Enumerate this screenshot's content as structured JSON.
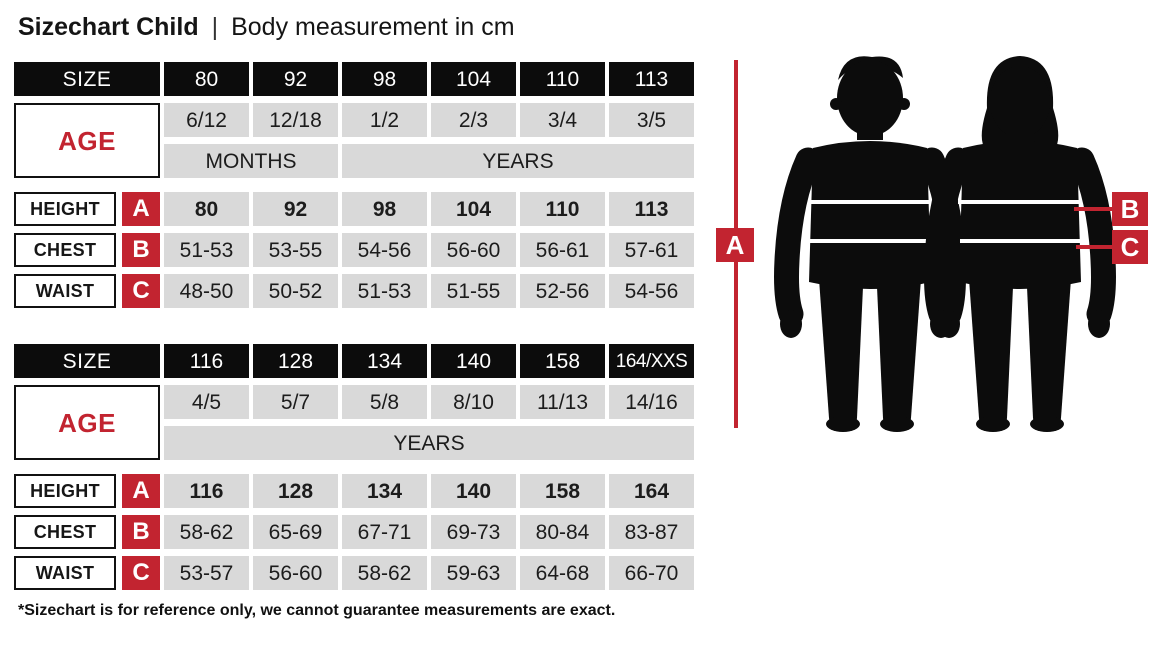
{
  "header": {
    "title": "Sizechart Child",
    "separator": "|",
    "subtitle": "Body measurement in cm"
  },
  "colors": {
    "accent_red": "#c22430",
    "cell_gray": "#d9d9d9",
    "cell_black": "#0c0c0c"
  },
  "labels": {
    "size": "SIZE",
    "age": "AGE",
    "height": "HEIGHT",
    "chest": "CHEST",
    "waist": "WAIST",
    "months": "MONTHS",
    "years": "YEARS"
  },
  "figure": {
    "marker_a": "A",
    "marker_b": "B",
    "marker_c": "C"
  },
  "tables": [
    {
      "name": "small-sizes",
      "sizes": [
        "80",
        "92",
        "98",
        "104",
        "110",
        "113"
      ],
      "ages": [
        "6/12",
        "12/18",
        "1/2",
        "2/3",
        "3/4",
        "3/5"
      ],
      "age_units": [
        {
          "label": "MONTHS",
          "span": 2
        },
        {
          "label": "YEARS",
          "span": 4
        }
      ],
      "height": [
        "80",
        "92",
        "98",
        "104",
        "110",
        "113"
      ],
      "chest": [
        "51-53",
        "53-55",
        "54-56",
        "56-60",
        "56-61",
        "57-61"
      ],
      "waist": [
        "48-50",
        "50-52",
        "51-53",
        "51-55",
        "52-56",
        "54-56"
      ]
    },
    {
      "name": "large-sizes",
      "sizes": [
        "116",
        "128",
        "134",
        "140",
        "158",
        "164/XXS"
      ],
      "ages": [
        "4/5",
        "5/7",
        "5/8",
        "8/10",
        "11/13",
        "14/16"
      ],
      "age_units": [
        {
          "label": "YEARS",
          "span": 6
        }
      ],
      "height": [
        "116",
        "128",
        "134",
        "140",
        "158",
        "164"
      ],
      "chest": [
        "58-62",
        "65-69",
        "67-71",
        "69-73",
        "80-84",
        "83-87"
      ],
      "waist": [
        "53-57",
        "56-60",
        "58-62",
        "59-63",
        "64-68",
        "66-70"
      ]
    }
  ],
  "footnote": "*Sizechart is for reference only, we cannot guarantee measurements are exact."
}
